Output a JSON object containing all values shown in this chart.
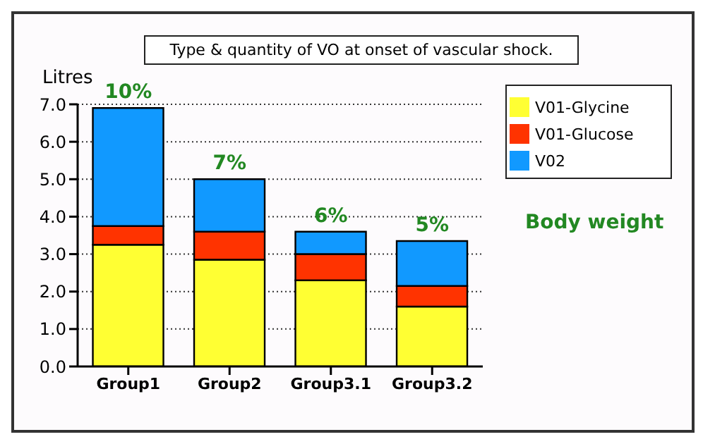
{
  "chart_data": {
    "type": "bar",
    "title": "Type & quantity of VO at onset of vascular shock.",
    "ylabel": "Litres",
    "categories": [
      "Group1",
      "Group2",
      "Group3.1",
      "Group3.2"
    ],
    "stacked": true,
    "series": [
      {
        "name": "V01-Glycine",
        "color": "#ffff33",
        "values": [
          3.25,
          2.85,
          2.3,
          1.6
        ]
      },
      {
        "name": "V01-Glucose",
        "color": "#ff3300",
        "values": [
          0.5,
          0.75,
          0.7,
          0.55
        ]
      },
      {
        "name": "V02",
        "color": "#1199ff",
        "values": [
          3.15,
          1.4,
          0.6,
          1.2
        ]
      }
    ],
    "annotations": [
      {
        "text": "10%",
        "x": "Group1",
        "y": 6.9
      },
      {
        "text": "7%",
        "x": "Group2",
        "y": 5.0
      },
      {
        "text": "6%",
        "x": "Group3.1",
        "y": 3.6
      },
      {
        "text": "5%",
        "x": "Group3.2",
        "y": 3.35
      },
      "Body weight"
    ],
    "ylim": [
      0,
      7
    ],
    "yticks": [
      {
        "value": 0,
        "label": "0.0"
      },
      {
        "value": 1,
        "label": "1.0"
      },
      {
        "value": 2,
        "label": "2.0"
      },
      {
        "value": 3,
        "label": "3.0"
      },
      {
        "value": 4,
        "label": "4.0"
      },
      {
        "value": 5,
        "label": "5.0"
      },
      {
        "value": 6,
        "label": "6.0"
      },
      {
        "value": 7,
        "label": "7.0"
      }
    ],
    "grid": "y",
    "legend": "right"
  }
}
